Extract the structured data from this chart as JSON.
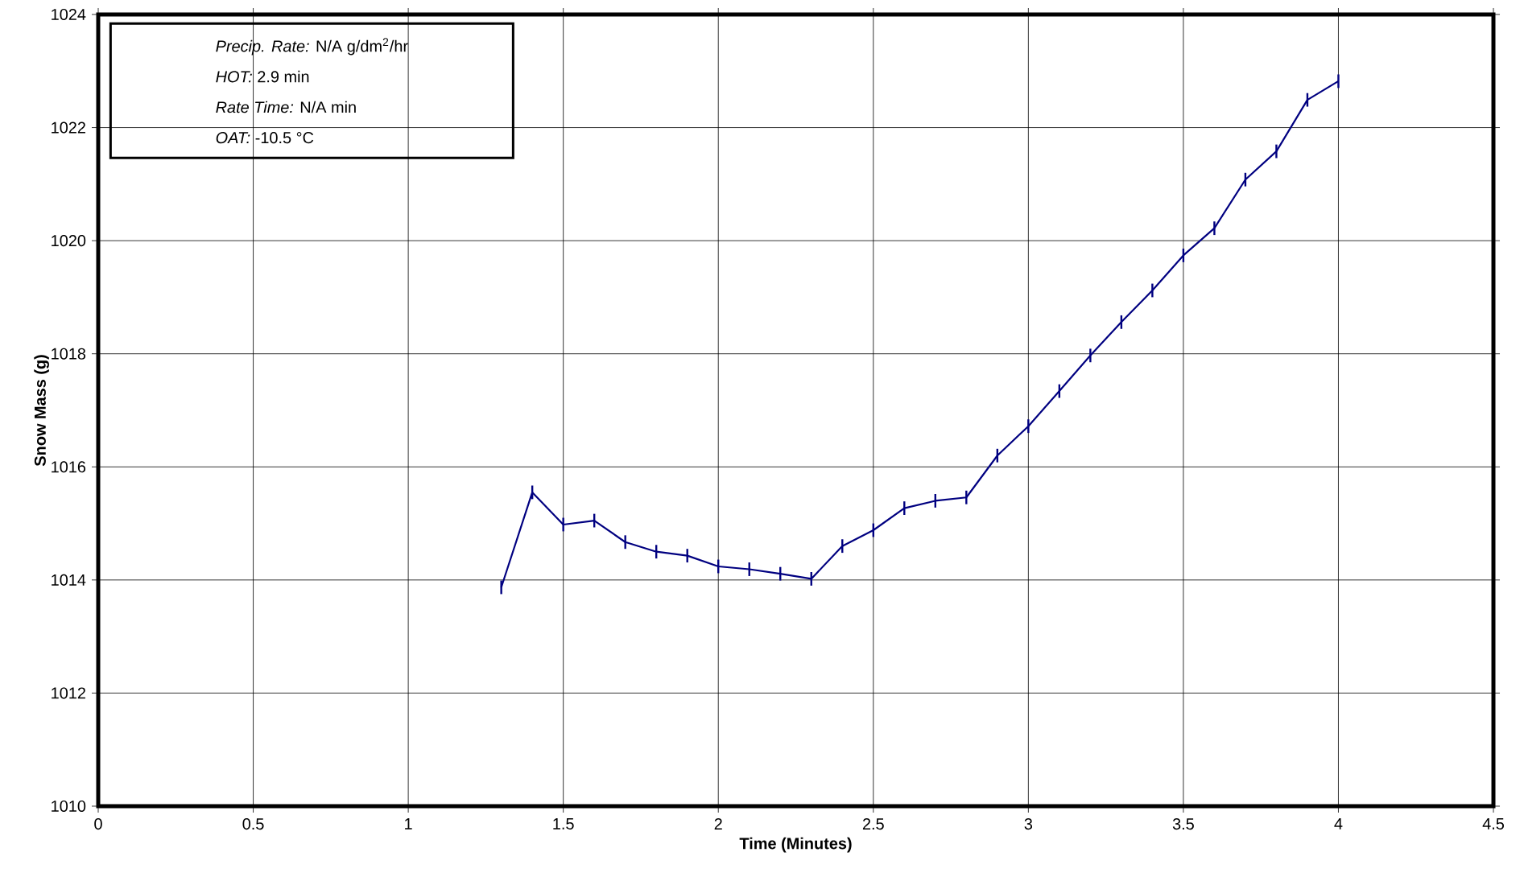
{
  "chart_data": {
    "type": "line",
    "xlabel": "Time (Minutes)",
    "ylabel": "Snow Mass (g)",
    "x": [
      1.3,
      1.4,
      1.5,
      1.6,
      1.7,
      1.8,
      1.9,
      2.0,
      2.1,
      2.2,
      2.3,
      2.4,
      2.5,
      2.6,
      2.7,
      2.8,
      2.9,
      3.0,
      3.1,
      3.2,
      3.3,
      3.4,
      3.5,
      3.6,
      3.7,
      3.8,
      3.9,
      4.0
    ],
    "series": [
      {
        "color": "#000080",
        "errors": [
          0.12,
          0.12,
          0.12,
          0.12,
          0.12,
          0.12,
          0.12,
          0.12,
          0.12,
          0.12,
          0.12,
          0.12,
          0.12,
          0.12,
          0.12,
          0.12,
          0.12,
          0.12,
          0.12,
          0.12,
          0.12,
          0.12,
          0.12,
          0.12,
          0.12,
          0.12,
          0.12,
          0.12
        ],
        "values": [
          1013.87,
          1015.55,
          1014.98,
          1015.05,
          1014.67,
          1014.5,
          1014.43,
          1014.24,
          1014.19,
          1014.11,
          1014.02,
          1014.6,
          1014.88,
          1015.27,
          1015.4,
          1015.46,
          1016.2,
          1016.72,
          1017.34,
          1017.97,
          1018.56,
          1019.12,
          1019.74,
          1020.22,
          1021.08,
          1021.58,
          1022.49,
          1022.82
        ]
      }
    ],
    "xlim": [
      0,
      4.5
    ],
    "xticks": [
      0,
      0.5,
      1,
      1.5,
      2,
      2.5,
      3,
      3.5,
      4,
      4.5
    ],
    "ylim": [
      1010,
      1024
    ],
    "yticks": [
      1010,
      1012,
      1014,
      1016,
      1018,
      1020,
      1022,
      1024
    ],
    "grid": true,
    "annotations": [
      "*Precip. Rate:*   N/A   g/dm$^{2}$/hr",
      "*HOT:*   2.9   min",
      "*Rate Time:*   N/A   min",
      "*OAT:*   -10.5   °C"
    ]
  }
}
